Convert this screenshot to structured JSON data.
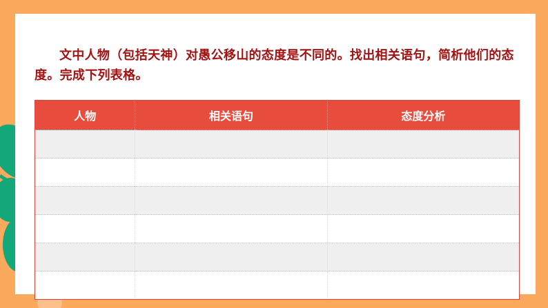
{
  "instruction": "文中人物（包括天神）对愚公移山的态度是不同的。找出相关语句，简析他们的态度。完成下列表格。",
  "table": {
    "headers": [
      "人物",
      "相关语句",
      "态度分析"
    ],
    "rows": [
      [
        "",
        "",
        ""
      ],
      [
        "",
        "",
        ""
      ],
      [
        "",
        "",
        ""
      ],
      [
        "",
        "",
        ""
      ],
      [
        "",
        "",
        ""
      ],
      [
        "",
        "",
        ""
      ]
    ]
  },
  "colors": {
    "background": "#fba95c",
    "header": "#e84c3d",
    "title": "#a31212",
    "leaf": "#13a87a"
  }
}
